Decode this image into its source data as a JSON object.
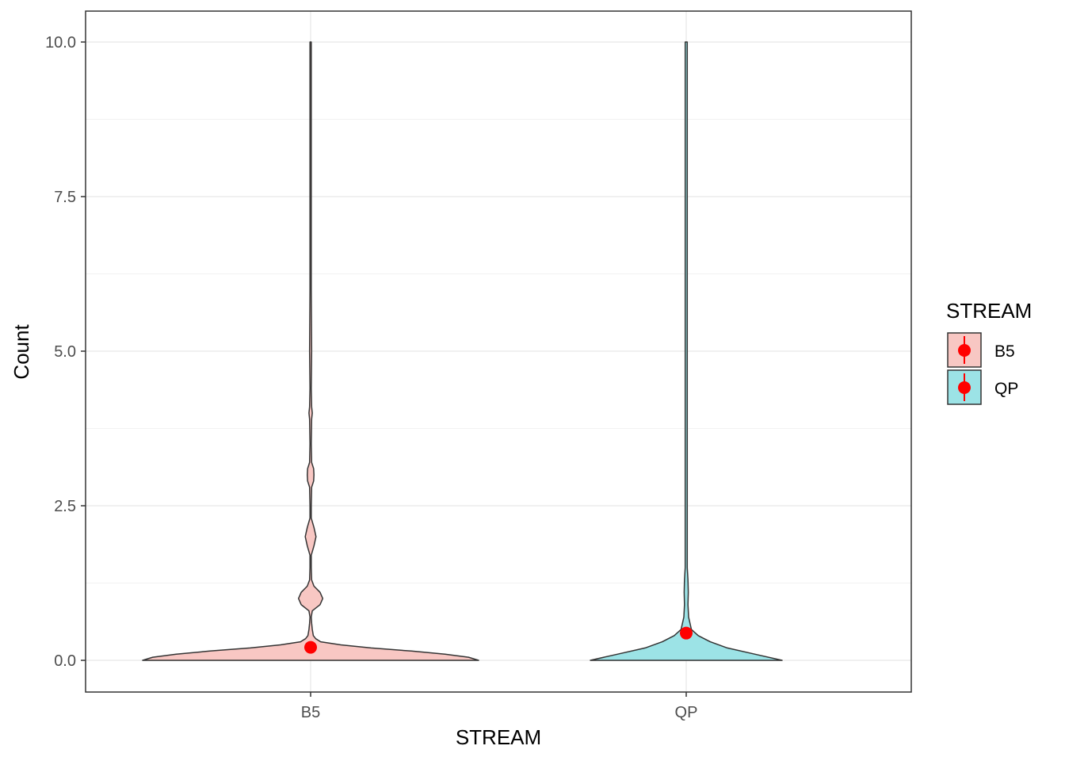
{
  "chart_data": {
    "type": "violin",
    "xlabel": "STREAM",
    "ylabel": "Count",
    "categories": [
      "B5",
      "QP"
    ],
    "ylim": [
      -0.2,
      10.5
    ],
    "yticks": [
      0.0,
      2.5,
      5.0,
      7.5,
      10.0
    ],
    "ytick_labels": [
      "0.0",
      "2.5",
      "5.0",
      "7.5",
      "10.0"
    ],
    "grid": true,
    "series": [
      {
        "name": "B5",
        "fill": "#F8C7C3",
        "mean": 0.21,
        "density": [
          [
            0.0,
            0.5
          ],
          [
            0.05,
            0.47
          ],
          [
            0.1,
            0.4
          ],
          [
            0.15,
            0.3
          ],
          [
            0.2,
            0.18
          ],
          [
            0.25,
            0.09
          ],
          [
            0.3,
            0.03
          ],
          [
            0.35,
            0.015
          ],
          [
            0.4,
            0.008
          ],
          [
            0.5,
            0.005
          ],
          [
            0.6,
            0.003
          ],
          [
            0.7,
            0.002
          ],
          [
            0.8,
            0.005
          ],
          [
            0.9,
            0.028
          ],
          [
            1.0,
            0.036
          ],
          [
            1.1,
            0.028
          ],
          [
            1.2,
            0.01
          ],
          [
            1.3,
            0.003
          ],
          [
            1.5,
            0.002
          ],
          [
            1.7,
            0.002
          ],
          [
            1.85,
            0.01
          ],
          [
            2.0,
            0.016
          ],
          [
            2.15,
            0.01
          ],
          [
            2.3,
            0.002
          ],
          [
            2.5,
            0.002
          ],
          [
            2.8,
            0.003
          ],
          [
            2.9,
            0.009
          ],
          [
            3.0,
            0.01
          ],
          [
            3.1,
            0.009
          ],
          [
            3.2,
            0.003
          ],
          [
            3.5,
            0.002
          ],
          [
            3.9,
            0.003
          ],
          [
            4.0,
            0.005
          ],
          [
            4.1,
            0.003
          ],
          [
            4.4,
            0.002
          ],
          [
            5.0,
            0.003
          ],
          [
            6.0,
            0.002
          ],
          [
            8.0,
            0.002
          ],
          [
            10.0,
            0.002
          ]
        ]
      },
      {
        "name": "QP",
        "fill": "#9CE3E6",
        "mean": 0.44,
        "density": [
          [
            0.0,
            0.28
          ],
          [
            0.1,
            0.2
          ],
          [
            0.2,
            0.12
          ],
          [
            0.3,
            0.07
          ],
          [
            0.4,
            0.035
          ],
          [
            0.5,
            0.015
          ],
          [
            0.7,
            0.007
          ],
          [
            0.9,
            0.005
          ],
          [
            1.1,
            0.006
          ],
          [
            1.3,
            0.005
          ],
          [
            1.5,
            0.003
          ],
          [
            2.0,
            0.003
          ],
          [
            4.0,
            0.003
          ],
          [
            6.0,
            0.003
          ],
          [
            8.0,
            0.003
          ],
          [
            10.0,
            0.003
          ]
        ]
      }
    ],
    "legend": {
      "title": "STREAM",
      "position": "right",
      "entries": [
        "B5",
        "QP"
      ]
    },
    "colors": {
      "mean_point": "#FF0000",
      "outline": "#333333",
      "grid": "#EBEBEB"
    }
  }
}
